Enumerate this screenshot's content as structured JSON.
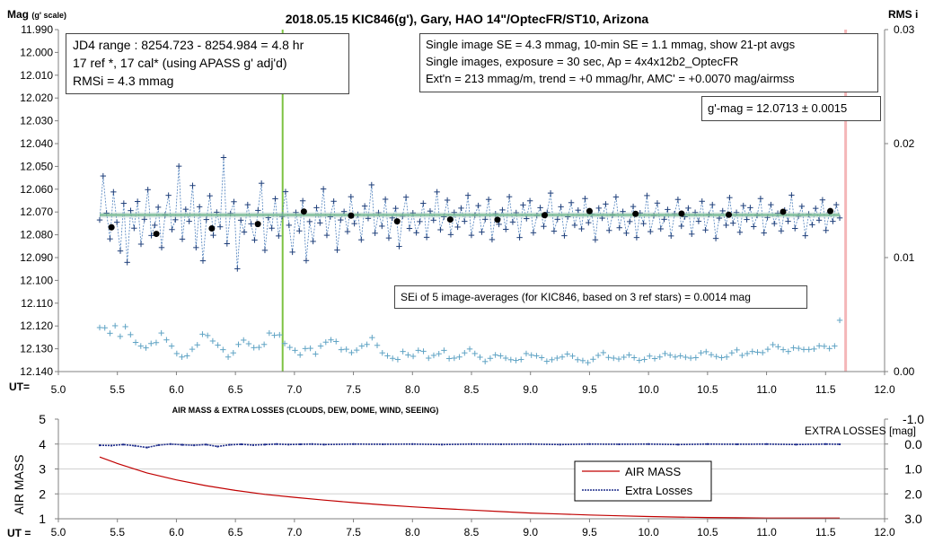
{
  "chart_data": [
    {
      "type": "scatter",
      "title": "2018.05.15  KIC846(g'),  Gary, HAO  14\"/OptecFR/ST10,  Arizona",
      "ylabel_left": "Mag",
      "ylabel_left_note": "(g' scale)",
      "ylabel_right": "RMS i",
      "xlabel": "UT=",
      "xlim": [
        5.0,
        12.0
      ],
      "ylim_left": [
        12.14,
        11.99
      ],
      "ylim_right": [
        0.0,
        0.03
      ],
      "x_ticks": [
        "5.0",
        "5.5",
        "6.0",
        "6.5",
        "7.0",
        "7.5",
        "8.0",
        "8.5",
        "9.0",
        "9.5",
        "10.0",
        "10.5",
        "11.0",
        "11.5",
        "12.0"
      ],
      "y_ticks_left": [
        "11.990",
        "12.000",
        "12.010",
        "12.020",
        "12.030",
        "12.040",
        "12.050",
        "12.060",
        "12.070",
        "12.080",
        "12.090",
        "12.100",
        "12.110",
        "12.120",
        "12.130",
        "12.140"
      ],
      "y_ticks_right": [
        "0.03",
        "0.02",
        "0.01",
        "0.00"
      ],
      "vertical_markers": [
        {
          "x": 6.9,
          "color": "#7dc242"
        },
        {
          "x": 11.67,
          "color": "#f4b6b8"
        }
      ],
      "fit_mag": 12.0713,
      "annotations": {
        "box1": [
          "JD4 range : 8254.723 - 8254.984 = 4.8  hr",
          "17 ref *, 17 cal* (using APASS g' adj'd)",
          "RMSi = 4.3 mmag"
        ],
        "box2": [
          "Single image SE = 4.3 mmag, 10-min SE = 1.1 mmag, show  21-pt avgs",
          "Single images, exposure = 30 sec, Ap = 4x4x12b2_OptecFR",
          "Ext'n = 213 mmag/m, trend =  +0 mmag/hr, AMC' = +0.0070 mag/airmss"
        ],
        "box3": "g'-mag = 12.0713  ± 0.0015",
        "box4": "SEi of 5 image-averages (for KIC846, based on 3 ref stars) = 0.0014  mag"
      },
      "series": [
        {
          "marker": "blue plus, dotted connector",
          "x_start": 5.35,
          "x_end": 11.62,
          "base": 12.0715,
          "points": [
            12.0735,
            12.0542,
            12.0705,
            12.0818,
            12.0612,
            12.0745,
            12.0871,
            12.0662,
            12.0921,
            12.0694,
            12.0771,
            12.0654,
            12.0841,
            12.0732,
            12.0602,
            12.0803,
            12.0758,
            12.0679,
            12.0856,
            12.0713,
            12.0627,
            12.0777,
            12.0734,
            12.0499,
            12.0819,
            12.0688,
            12.0741,
            12.0584,
            12.0856,
            12.0677,
            12.0914,
            12.0733,
            12.0629,
            12.0802,
            12.0701,
            12.0765,
            12.0461,
            12.0839,
            12.0707,
            12.0655,
            12.0949,
            12.0736,
            12.0788,
            12.0668,
            12.0752,
            12.0823,
            12.0693,
            12.0574,
            12.0868,
            12.0725,
            12.0771,
            12.0642,
            12.0805,
            12.0719,
            12.0611,
            12.0758,
            12.0876,
            12.0702,
            12.0783,
            12.0651,
            12.0913,
            12.0742,
            12.0829,
            12.0681,
            12.0748,
            12.0599,
            12.0802,
            12.0721,
            12.0653,
            12.0867,
            12.0735,
            12.0698,
            12.0786,
            12.0633,
            12.0751,
            12.0711,
            12.0822,
            12.0674,
            12.0728,
            12.0581,
            12.0793,
            12.0703,
            12.0762,
            12.0644,
            12.0814,
            12.0726,
            12.0684,
            12.0851,
            12.0718,
            12.0635,
            12.0772,
            12.0704,
            12.0791,
            12.0742,
            12.0662,
            12.0811,
            12.0696,
            12.0736,
            12.0612,
            12.0778,
            12.0721,
            12.0648,
            12.0799,
            12.0702,
            12.0766,
            12.0683,
            12.0741,
            12.0627,
            12.0802,
            12.0714,
            12.0672,
            12.0788,
            12.0732,
            12.0645,
            12.0821,
            12.0708,
            12.0754,
            12.0691,
            12.0776,
            12.0633,
            12.0744,
            12.0703,
            12.0812,
            12.0669,
            12.0729,
            12.0651,
            12.0791,
            12.0716,
            12.0681,
            12.0763,
            12.0702,
            12.0617,
            12.0784,
            12.0732,
            12.0677,
            12.0804,
            12.0721,
            12.0659,
            12.0758,
            12.0692,
            12.0774,
            12.0641,
            12.0747,
            12.0709,
            12.0822,
            12.0683,
            12.0727,
            12.0665,
            12.0781,
            12.0713,
            12.0634,
            12.0769,
            12.0698,
            12.0793,
            12.0742,
            12.0676,
            12.0812,
            12.0704,
            12.0751,
            12.0628,
            12.0786,
            12.0716,
            12.0661,
            12.0774,
            12.0732,
            12.0689,
            12.0805,
            12.0708,
            12.0645,
            12.0762,
            12.0721,
            12.0683,
            12.0797,
            12.0702,
            12.0741,
            12.0653,
            12.0779,
            12.0711,
            12.0668,
            12.0816,
            12.0727,
            12.0695,
            12.0758,
            12.0637,
            12.0749,
            12.0702,
            12.0789,
            12.0672,
            12.0733,
            12.0681,
            12.0764,
            12.0715,
            12.0641,
            12.0792,
            12.0724,
            12.0668,
            12.0751,
            12.0706,
            12.0783,
            12.0692,
            12.0741,
            12.0626,
            12.0772,
            12.0718,
            12.0675,
            12.0804,
            12.0709,
            12.0756,
            12.0684,
            12.0736,
            12.0647,
            12.0781,
            12.0703,
            12.0741,
            12.0668,
            12.0726
          ]
        },
        {
          "marker": "black dot, 21-pt avgs",
          "x": [
            5.45,
            5.83,
            6.3,
            6.69,
            7.08,
            7.48,
            7.87,
            8.32,
            8.72,
            9.12,
            9.5,
            9.89,
            10.28,
            10.68,
            11.14,
            11.54
          ],
          "y": [
            12.0767,
            12.0796,
            12.0772,
            12.0753,
            12.0698,
            12.0716,
            12.0741,
            12.0733,
            12.0734,
            12.0714,
            12.0696,
            12.0708,
            12.0707,
            12.0712,
            12.0699,
            12.0696
          ]
        },
        {
          "marker": "light-blue plus",
          "x_start": 5.35,
          "x_end": 11.62,
          "y": [
            12.1207,
            12.1208,
            12.1232,
            12.1199,
            12.1246,
            12.1203,
            12.1238,
            12.1272,
            12.1288,
            12.1296,
            12.1277,
            12.1273,
            12.1231,
            12.1261,
            12.1288,
            12.1321,
            12.1336,
            12.1331,
            12.1302,
            12.1283,
            12.1236,
            12.1242,
            12.1266,
            12.1284,
            12.1304,
            12.1336,
            12.1318,
            12.1281,
            12.1262,
            12.1278,
            12.1295,
            12.1294,
            12.1281,
            12.1231,
            12.1241,
            12.1239,
            12.1277,
            12.1294,
            12.1307,
            12.1327,
            12.1299,
            12.1298,
            12.1323,
            12.1288,
            12.1271,
            12.1261,
            12.1268,
            12.1304,
            12.1302,
            12.1317,
            12.1306,
            12.1288,
            12.1281,
            12.1251,
            12.1285,
            12.1318,
            12.1331,
            12.1342,
            12.1347,
            12.1312,
            12.1327,
            12.1333,
            12.1307,
            12.1311,
            12.1341,
            12.1329,
            12.1322,
            12.1307,
            12.1343,
            12.1341,
            12.1336,
            12.1318,
            12.1301,
            12.1321,
            12.1337,
            12.1356,
            12.1342,
            12.1327,
            12.1331,
            12.1341,
            12.1348,
            12.1351,
            12.1347,
            12.1321,
            12.1328,
            12.1331,
            12.1339,
            12.1355,
            12.1348,
            12.1341,
            12.1336,
            12.1323,
            12.1332,
            12.1348,
            12.1352,
            12.1361,
            12.1346,
            12.1329,
            12.1317,
            12.1338,
            12.1341,
            12.1345,
            12.1337,
            12.1327,
            12.1339,
            12.1351,
            12.1347,
            12.1332,
            12.1343,
            12.1336,
            12.1321,
            12.1328,
            12.1336,
            12.1331,
            12.1337,
            12.1341,
            12.1339,
            12.1318,
            12.1313,
            12.1326,
            12.1334,
            12.1339,
            12.1336,
            12.1318,
            12.1305,
            12.1329,
            12.1321,
            12.1312,
            12.1315,
            12.1317,
            12.1302,
            12.1282,
            12.1291,
            12.1304,
            12.1312,
            12.1296,
            12.1298,
            12.1303,
            12.1303,
            12.1301,
            12.1287,
            12.1289,
            12.1299,
            12.1288,
            12.1175
          ]
        }
      ]
    },
    {
      "type": "line",
      "title": "AIR MASS & EXTRA LOSSES (CLOUDS, DEW, DOME, WIND, SEEING)",
      "ylabel_left": "AIR MASS",
      "ylabel_right": "EXTRA LOSSES [mag]",
      "xlabel": "UT =",
      "xlim": [
        5.0,
        12.0
      ],
      "ylim_left": [
        1,
        5
      ],
      "ylim_right": [
        3.0,
        -1.0
      ],
      "x_ticks": [
        "5.0",
        "5.5",
        "6.0",
        "6.5",
        "7.0",
        "7.5",
        "8.0",
        "8.5",
        "9.0",
        "9.5",
        "10.0",
        "10.5",
        "11.0",
        "11.5",
        "12.0"
      ],
      "y_ticks_left": [
        "5",
        "4",
        "3",
        "2",
        "1"
      ],
      "y_ticks_right": [
        "-1.0",
        "0.0",
        "1.0",
        "2.0",
        "3.0"
      ],
      "legend": {
        "position": "bottom-right",
        "entries": [
          "AIR MASS",
          "Extra Losses"
        ]
      },
      "series": [
        {
          "name": "AIR MASS",
          "color": "#c00000",
          "x": [
            5.35,
            5.5,
            5.75,
            6.0,
            6.25,
            6.5,
            6.75,
            7.0,
            7.25,
            7.5,
            7.75,
            8.0,
            8.25,
            8.5,
            8.75,
            9.0,
            9.25,
            9.5,
            9.75,
            10.0,
            10.25,
            10.5,
            10.75,
            11.0,
            11.25,
            11.5,
            11.62
          ],
          "y": [
            3.48,
            3.22,
            2.84,
            2.56,
            2.33,
            2.14,
            1.98,
            1.86,
            1.75,
            1.65,
            1.56,
            1.48,
            1.41,
            1.35,
            1.29,
            1.23,
            1.19,
            1.15,
            1.12,
            1.09,
            1.07,
            1.05,
            1.04,
            1.03,
            1.03,
            1.03,
            1.03
          ]
        },
        {
          "name": "Extra Losses",
          "color": "#1f2d8c",
          "x": [
            5.35,
            5.45,
            5.55,
            5.65,
            5.75,
            5.85,
            5.95,
            6.05,
            6.15,
            6.25,
            6.35,
            6.45,
            6.55,
            6.65,
            6.75,
            6.85,
            6.95,
            7.05,
            7.15,
            7.25,
            7.5,
            7.75,
            8.0,
            8.25,
            8.5,
            8.75,
            9.0,
            9.25,
            9.5,
            9.75,
            10.0,
            10.25,
            10.5,
            10.75,
            11.0,
            11.25,
            11.5,
            11.62
          ],
          "y": [
            0.05,
            0.06,
            0.02,
            0.07,
            0.14,
            0.04,
            0.0,
            0.03,
            0.05,
            0.02,
            0.1,
            0.03,
            0.01,
            0.04,
            0.02,
            0.0,
            0.02,
            0.01,
            0.0,
            0.02,
            0.0,
            0.01,
            0.0,
            0.02,
            0.0,
            0.01,
            0.0,
            0.02,
            0.0,
            0.01,
            0.0,
            0.02,
            0.0,
            0.01,
            0.0,
            0.02,
            0.0,
            0.01
          ]
        }
      ]
    }
  ]
}
